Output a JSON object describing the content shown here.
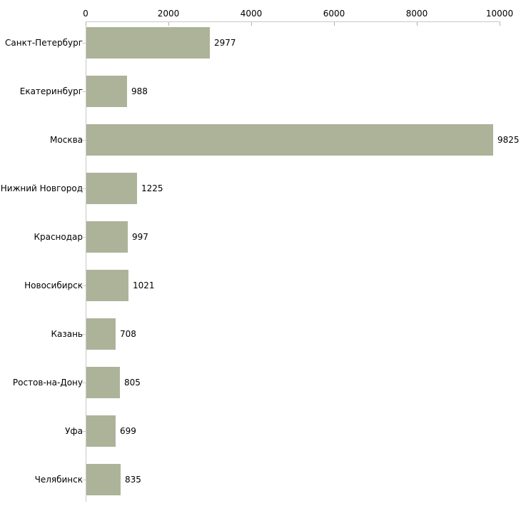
{
  "chart_data": {
    "type": "bar",
    "orientation": "horizontal",
    "title": "",
    "xlabel": "",
    "ylabel": "",
    "categories": [
      "Санкт-Петербург",
      "Екатеринбург",
      "Москва",
      "Нижний Новгород",
      "Краснодар",
      "Новосибирск",
      "Казань",
      "Ростов-на-Дону",
      "Уфа",
      "Челябинск"
    ],
    "values": [
      2977,
      988,
      9825,
      1225,
      997,
      1021,
      708,
      805,
      699,
      835
    ],
    "value_labels": [
      "2977",
      "988",
      "9825",
      "1225",
      "997",
      "1021",
      "708",
      "805",
      "699",
      "835"
    ],
    "x_ticks": [
      0,
      2000,
      4000,
      6000,
      8000,
      10000
    ],
    "x_tick_labels": [
      "0",
      "2000",
      "4000",
      "6000",
      "8000",
      "10000"
    ],
    "xlim": [
      0,
      10000
    ],
    "axis_position": "top",
    "grid": false,
    "legend": false,
    "colors": {
      "bar": "#acb399",
      "axis_line": "#c8c8c8",
      "x_tick_mark": "#b5b68a",
      "category_tick_mark": "#cfcfc2",
      "text": "#000000",
      "background": "#ffffff"
    }
  }
}
